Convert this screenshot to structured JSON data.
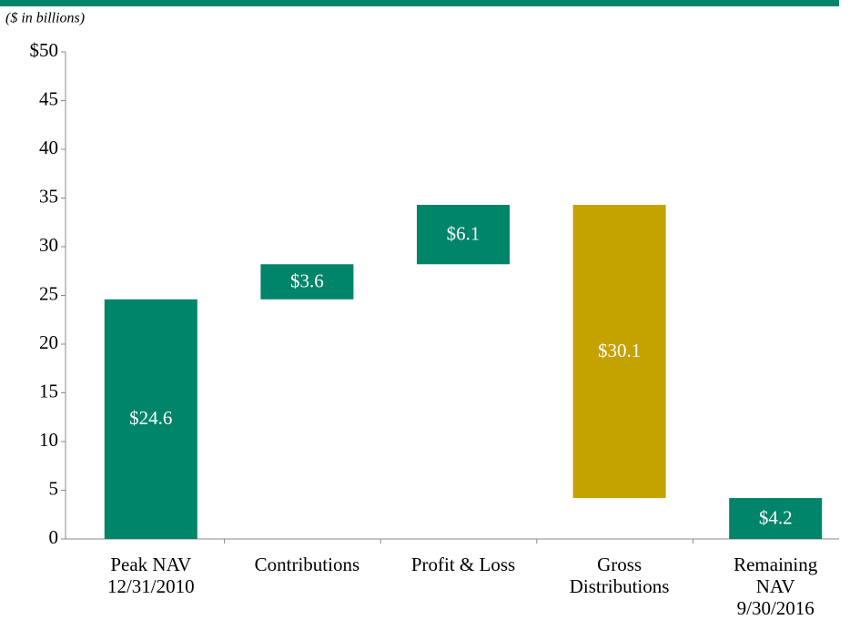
{
  "chart_data": {
    "type": "waterfall",
    "subtitle": "($ in billions)",
    "categories": [
      [
        "Peak NAV",
        "12/31/2010"
      ],
      [
        "Contributions"
      ],
      [
        "Profit & Loss"
      ],
      [
        "Gross",
        "Distributions"
      ],
      [
        "Remaining",
        "NAV",
        "9/30/2016"
      ]
    ],
    "values": [
      24.6,
      3.6,
      6.1,
      30.1,
      4.2
    ],
    "value_labels": [
      "$24.6",
      "$3.6",
      "$6.1",
      "$30.1",
      "$4.2"
    ],
    "kinds": [
      "total",
      "increase",
      "increase",
      "decrease",
      "total"
    ],
    "colors": [
      "#00846a",
      "#00846a",
      "#00846a",
      "#c4a200",
      "#00846a"
    ],
    "ylim": [
      0,
      50
    ],
    "yticks": [
      0,
      5,
      10,
      15,
      20,
      25,
      30,
      35,
      40,
      45,
      {
        "value": 50,
        "label": "$50"
      }
    ]
  }
}
